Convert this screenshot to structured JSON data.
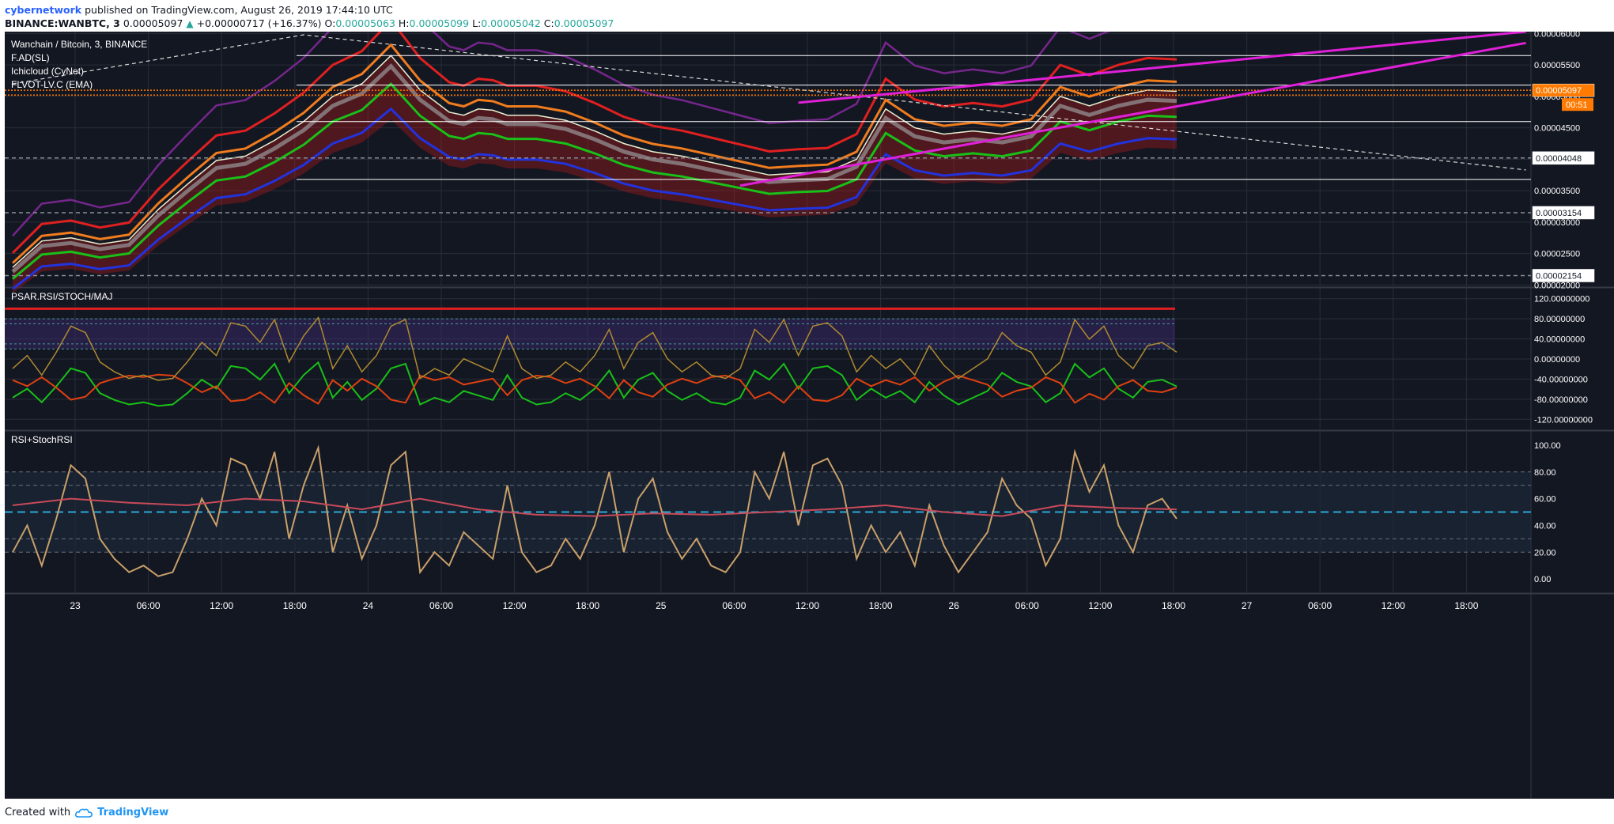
{
  "header": {
    "author": "cybernetwork",
    "published": "published on TradingView.com, August 26, 2019 17:44:10 UTC",
    "symbol": "BINANCE:WANBTC, 3",
    "open_label": "O:",
    "open_value": "0.00005063",
    "high_label": "H:",
    "high_value": "0.00005099",
    "low_label": "L:",
    "low_value": "0.00005042",
    "close_label": "C:",
    "close_value": "0.00005097",
    "last_price": "0.00005097",
    "change": "+0.00000717 (+16.37%)"
  },
  "footer": {
    "created_with": "Created with",
    "brand": "TradingView"
  },
  "colors": {
    "background": "#131722",
    "grid": "#2a2e39",
    "axis_text": "#ffffff",
    "red_band": "#e02020",
    "orange_band": "#f07c1e",
    "green_band": "#18c018",
    "blue_band": "#2233dd",
    "purple_band": "#8e2aa8",
    "magenta_trend": "#e020d8",
    "price_line": "#ff7a00",
    "rsi": "#c9a06a",
    "stoch_rsi": "#c84a5a",
    "rsi_mid": "#2aa8d8"
  },
  "chart_data": [
    {
      "type": "line",
      "title": "Wanchain / Bitcoin, 3, BINANCE",
      "indicators": [
        "F.AD(SL)",
        "Ichicloud (CyNet)",
        "FLVOT-LV.C (EMA)"
      ],
      "x_ticks": [
        "23",
        "06:00",
        "12:00",
        "18:00",
        "24",
        "06:00",
        "12:00",
        "18:00",
        "25",
        "06:00",
        "12:00",
        "18:00",
        "26",
        "06:00",
        "12:00",
        "18:00",
        "27",
        "06:00",
        "12:00",
        "18:00"
      ],
      "y_ticks": [
        "0.00006000",
        "0.00005500",
        "0.00005000",
        "0.00004500",
        "0.00004000",
        "0.00003500",
        "0.00003000",
        "0.00002500",
        "0.00002000"
      ],
      "ylim": [
        1.98e-05,
        6.03e-05
      ],
      "price_labels": [
        "0.00005097",
        "00:51",
        "0.00004048",
        "0.00003154",
        "0.00002154"
      ],
      "levels": [
        4.02e-05,
        3.15e-05,
        2.15e-05
      ],
      "solid_levels": [
        5.65e-05,
        5.18e-05,
        4.6e-05,
        3.68e-05
      ],
      "series": [
        {
          "x": [
            0,
            4,
            8,
            12,
            16,
            20,
            24,
            28,
            32,
            36,
            40,
            44,
            48,
            52,
            56,
            60,
            62,
            64,
            66,
            68,
            72,
            76,
            80,
            84,
            88,
            92,
            96,
            100,
            104,
            108,
            112,
            116,
            120,
            124,
            128,
            132,
            136,
            140,
            144,
            148,
            152,
            156,
            160
          ],
          "values": [
            2.28e-05,
            2.7e-05,
            2.75e-05,
            2.65e-05,
            2.72e-05,
            3.2e-05,
            3.6e-05,
            3.98e-05,
            4.05e-05,
            4.3e-05,
            4.6e-05,
            5e-05,
            5.2e-05,
            5.65e-05,
            5.1e-05,
            4.75e-05,
            4.7e-05,
            4.8e-05,
            4.78e-05,
            4.7e-05,
            4.7e-05,
            4.62e-05,
            4.45e-05,
            4.25e-05,
            4.12e-05,
            4.05e-05,
            3.95e-05,
            3.85e-05,
            3.75e-05,
            3.78e-05,
            3.8e-05,
            4e-05,
            4.8e-05,
            4.5e-05,
            4.4e-05,
            4.45e-05,
            4.4e-05,
            4.5e-05,
            5e-05,
            4.85e-05,
            5e-05,
            5.1e-05,
            5.08e-05
          ]
        }
      ],
      "trendlines": [
        {
          "x": [
            108,
            208
          ],
          "values": [
            4.9e-05,
            6.03e-05
          ]
        },
        {
          "x": [
            100,
            208
          ],
          "values": [
            3.58e-05,
            5.85e-05
          ]
        }
      ],
      "dashed_trendline": {
        "x": [
          0,
          40,
          208
        ],
        "values": [
          5.2e-05,
          5.98e-05,
          3.83e-05
        ]
      },
      "grid": true
    },
    {
      "type": "line",
      "title": "PSAR.RSI/STOCH/MAJ",
      "y_ticks": [
        "120.00000000",
        "80.00000000",
        "40.00000000",
        "0.00000000",
        "-40.00000000",
        "-80.00000000",
        "-120.00000000"
      ],
      "ylim": [
        -140,
        140
      ],
      "bands": [
        [
          20,
          80
        ],
        [
          30,
          70
        ]
      ],
      "grid": true
    },
    {
      "type": "line",
      "title": "RSI+StochRSI",
      "y_ticks": [
        "100.00",
        "80.00",
        "60.00",
        "40.00",
        "20.00",
        "0.00"
      ],
      "ylim": [
        -10,
        110
      ],
      "levels": [
        80,
        70,
        50,
        30,
        20
      ],
      "series": [
        {
          "name": "RSI",
          "x": [
            0,
            2,
            4,
            6,
            8,
            10,
            12,
            14,
            16,
            18,
            20,
            22,
            24,
            26,
            28,
            30,
            32,
            34,
            36,
            38,
            40,
            42,
            44,
            46,
            48,
            50,
            52,
            54,
            56,
            58,
            60,
            62,
            64,
            66,
            68,
            70,
            72,
            74,
            76,
            78,
            80,
            82,
            84,
            86,
            88,
            90,
            92,
            94,
            96,
            98,
            100,
            102,
            104,
            106,
            108,
            110,
            112,
            114,
            116,
            118,
            120,
            122,
            124,
            126,
            128,
            130,
            132,
            134,
            136,
            138,
            140,
            142,
            144,
            146,
            148,
            150,
            152,
            154,
            156,
            158,
            160
          ],
          "values": [
            20,
            40,
            10,
            45,
            85,
            75,
            30,
            15,
            5,
            10,
            2,
            5,
            30,
            60,
            40,
            90,
            85,
            60,
            95,
            30,
            70,
            98,
            20,
            55,
            15,
            40,
            85,
            95,
            5,
            20,
            10,
            35,
            25,
            15,
            70,
            20,
            5,
            10,
            30,
            15,
            40,
            80,
            20,
            60,
            75,
            35,
            15,
            30,
            10,
            5,
            20,
            80,
            60,
            95,
            40,
            85,
            90,
            70,
            15,
            40,
            20,
            35,
            10,
            55,
            25,
            5,
            20,
            35,
            75,
            55,
            45,
            10,
            30,
            95,
            65,
            85,
            40,
            20,
            55,
            60,
            45
          ]
        },
        {
          "name": "StochRSI",
          "x": [
            0,
            8,
            16,
            24,
            32,
            40,
            48,
            56,
            64,
            72,
            80,
            88,
            96,
            104,
            112,
            120,
            128,
            136,
            144,
            152,
            160
          ],
          "values": [
            55,
            60,
            57,
            55,
            60,
            58,
            52,
            60,
            52,
            48,
            47,
            49,
            48,
            50,
            52,
            55,
            50,
            47,
            55,
            53,
            52
          ]
        }
      ],
      "grid": true
    }
  ]
}
